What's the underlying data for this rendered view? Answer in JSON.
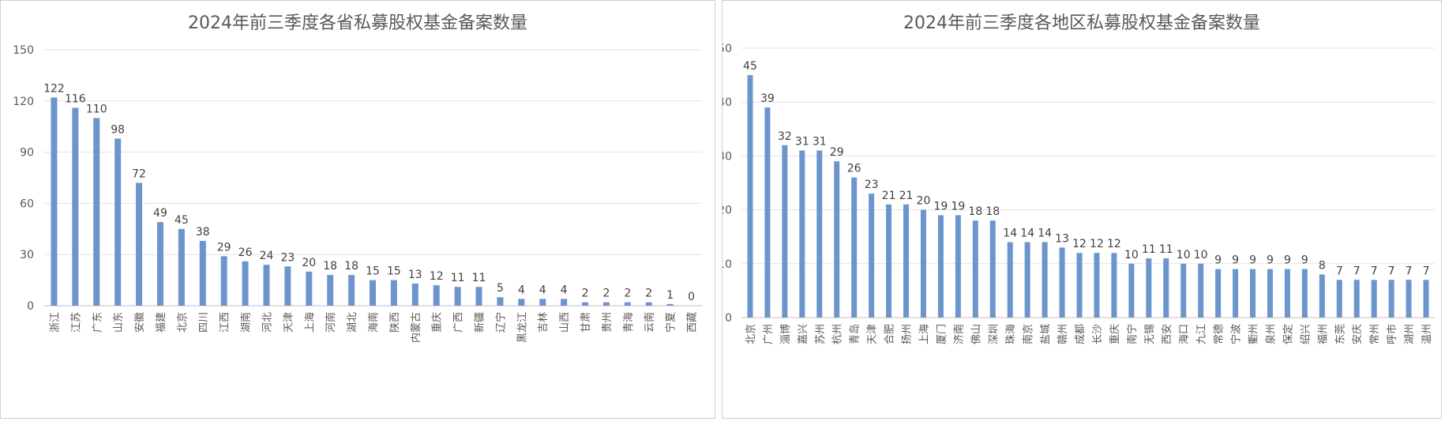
{
  "chart_data": [
    {
      "type": "bar",
      "title": "2024年前三季度各省私募股权基金备案数量",
      "categories": [
        "浙江",
        "江苏",
        "广东",
        "山东",
        "安徽",
        "福建",
        "北京",
        "四川",
        "江西",
        "湖南",
        "河北",
        "天津",
        "上海",
        "河南",
        "湖北",
        "海南",
        "陕西",
        "内蒙古",
        "重庆",
        "广西",
        "新疆",
        "辽宁",
        "黑龙江",
        "吉林",
        "山西",
        "甘肃",
        "贵州",
        "青海",
        "云南",
        "宁夏",
        "西藏"
      ],
      "values": [
        122,
        116,
        110,
        98,
        72,
        49,
        45,
        38,
        29,
        26,
        24,
        23,
        20,
        18,
        18,
        15,
        15,
        13,
        12,
        11,
        11,
        5,
        4,
        4,
        4,
        2,
        2,
        2,
        2,
        1,
        0
      ],
      "ylim": [
        0,
        150
      ],
      "yticks": [
        0,
        30,
        60,
        90,
        120,
        150
      ],
      "grid": true,
      "bar_color": "#6b95cc"
    },
    {
      "type": "bar",
      "title": "2024年前三季度各地区私募股权基金备案数量",
      "categories": [
        "北京",
        "广州",
        "淄博",
        "嘉兴",
        "苏州",
        "杭州",
        "青岛",
        "天津",
        "合肥",
        "扬州",
        "上海",
        "厦门",
        "济南",
        "佛山",
        "深圳",
        "珠海",
        "南京",
        "盐城",
        "赣州",
        "成都",
        "长沙",
        "重庆",
        "南宁",
        "无锡",
        "西安",
        "海口",
        "九江",
        "常德",
        "宁波",
        "衢州",
        "泉州",
        "保定",
        "绍兴",
        "福州",
        "东莞",
        "安庆",
        "常州",
        "呼市",
        "湖州",
        "温州"
      ],
      "values": [
        45,
        39,
        32,
        31,
        31,
        29,
        26,
        23,
        21,
        21,
        20,
        19,
        19,
        18,
        18,
        14,
        14,
        14,
        13,
        12,
        12,
        12,
        10,
        11,
        11,
        10,
        10,
        9,
        9,
        9,
        9,
        9,
        9,
        8,
        7,
        7,
        7,
        7,
        7,
        7
      ],
      "ylim": [
        0,
        50
      ],
      "yticks": [
        0,
        10,
        20,
        30,
        40,
        50
      ],
      "grid": true,
      "bar_color": "#6b95cc"
    }
  ]
}
